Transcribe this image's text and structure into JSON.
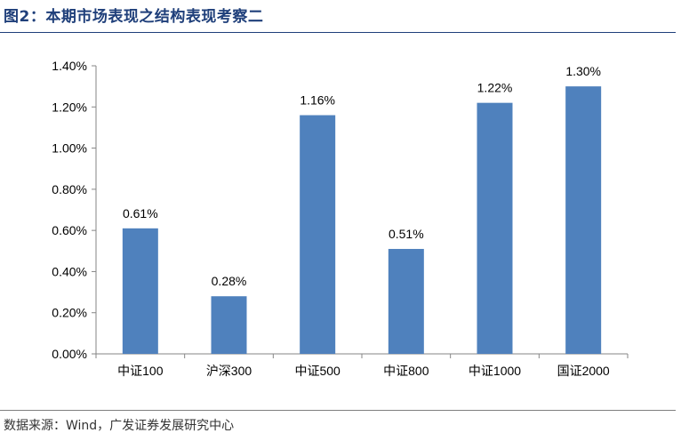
{
  "figure": {
    "title": "图2：本期市场表现之结构表现考察二",
    "source": "数据来源：Wind，广发证券发展研究中心"
  },
  "chart_data": {
    "type": "bar",
    "categories": [
      "中证100",
      "沪深300",
      "中证500",
      "中证800",
      "中证1000",
      "国证2000"
    ],
    "values": [
      0.61,
      0.28,
      1.16,
      0.51,
      1.22,
      1.3
    ],
    "data_labels": [
      "0.61%",
      "0.28%",
      "1.16%",
      "0.51%",
      "1.22%",
      "1.30%"
    ],
    "yticks": [
      "0.00%",
      "0.20%",
      "0.40%",
      "0.60%",
      "0.80%",
      "1.00%",
      "1.20%",
      "1.40%"
    ],
    "ylim": [
      0,
      1.4
    ],
    "unit": "%",
    "grid": false,
    "legend": "none",
    "bar_color": "#4f81bd"
  }
}
